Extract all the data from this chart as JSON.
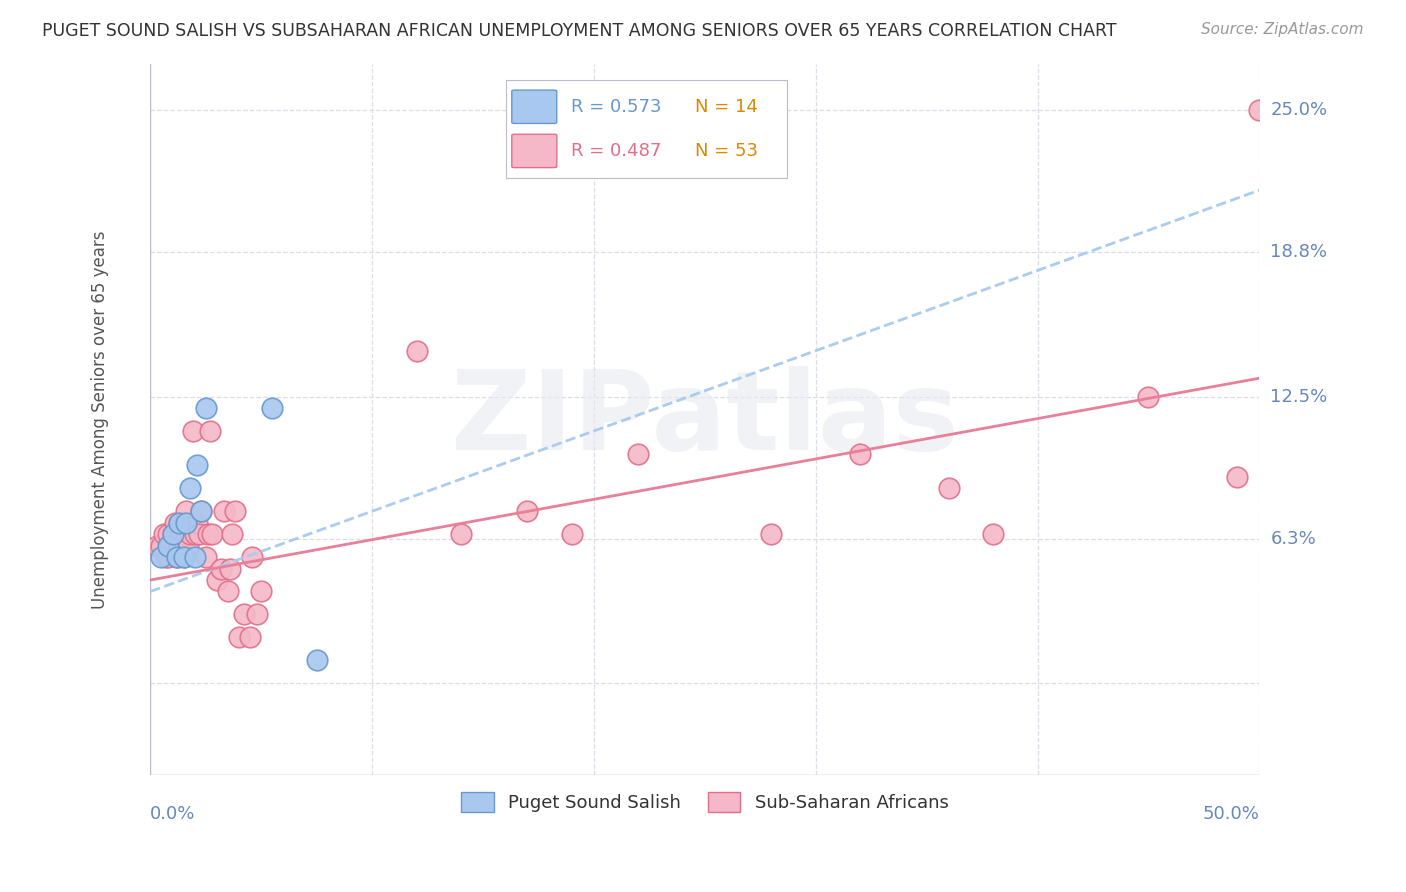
{
  "title": "PUGET SOUND SALISH VS SUBSAHARAN AFRICAN UNEMPLOYMENT AMONG SENIORS OVER 65 YEARS CORRELATION CHART",
  "source": "Source: ZipAtlas.com",
  "ylabel": "Unemployment Among Seniors over 65 years",
  "xlim": [
    0.0,
    0.5
  ],
  "ylim": [
    -0.04,
    0.27
  ],
  "ytick_positions": [
    0.0,
    0.063,
    0.125,
    0.188,
    0.25
  ],
  "ytick_labels": [
    "",
    "6.3%",
    "12.5%",
    "18.8%",
    "25.0%"
  ],
  "background_color": "#ffffff",
  "watermark": "ZIPatlas",
  "legend_r1": "R = 0.573",
  "legend_n1": "N = 14",
  "legend_r2": "R = 0.487",
  "legend_n2": "N = 53",
  "salish_color": "#a8c8f0",
  "salish_edge_color": "#6699cc",
  "african_color": "#f5b8c8",
  "african_edge_color": "#e0708a",
  "salish_line_color": "#aaccee",
  "african_line_color": "#e8809a",
  "grid_color": "#dddde8",
  "title_color": "#333333",
  "tick_label_color": "#6688bb",
  "legend_blue_color": "#6699cc",
  "legend_orange_color": "#dd8800",
  "legend_pink_color": "#e0708a",
  "salish_x": [
    0.005,
    0.008,
    0.01,
    0.012,
    0.013,
    0.015,
    0.016,
    0.018,
    0.02,
    0.021,
    0.023,
    0.025,
    0.055,
    0.075
  ],
  "salish_y": [
    0.055,
    0.06,
    0.065,
    0.055,
    0.07,
    0.055,
    0.07,
    0.085,
    0.055,
    0.095,
    0.075,
    0.12,
    0.12,
    0.01
  ],
  "african_x": [
    0.003,
    0.005,
    0.006,
    0.007,
    0.008,
    0.008,
    0.009,
    0.01,
    0.011,
    0.012,
    0.013,
    0.013,
    0.014,
    0.015,
    0.015,
    0.016,
    0.016,
    0.017,
    0.018,
    0.019,
    0.02,
    0.021,
    0.022,
    0.023,
    0.025,
    0.026,
    0.027,
    0.028,
    0.03,
    0.032,
    0.033,
    0.035,
    0.036,
    0.037,
    0.038,
    0.04,
    0.042,
    0.045,
    0.046,
    0.048,
    0.05,
    0.12,
    0.14,
    0.17,
    0.19,
    0.22,
    0.28,
    0.32,
    0.36,
    0.38,
    0.45,
    0.49,
    0.5
  ],
  "african_y": [
    0.06,
    0.06,
    0.065,
    0.055,
    0.055,
    0.065,
    0.06,
    0.065,
    0.07,
    0.055,
    0.06,
    0.07,
    0.065,
    0.055,
    0.07,
    0.065,
    0.075,
    0.06,
    0.065,
    0.11,
    0.065,
    0.07,
    0.065,
    0.075,
    0.055,
    0.065,
    0.11,
    0.065,
    0.045,
    0.05,
    0.075,
    0.04,
    0.05,
    0.065,
    0.075,
    0.02,
    0.03,
    0.02,
    0.055,
    0.03,
    0.04,
    0.145,
    0.065,
    0.075,
    0.065,
    0.1,
    0.065,
    0.1,
    0.085,
    0.065,
    0.125,
    0.09,
    0.25
  ],
  "salish_trend_x": [
    0.0,
    0.5
  ],
  "salish_trend_y": [
    0.04,
    0.215
  ],
  "african_trend_x": [
    0.0,
    0.5
  ],
  "african_trend_y": [
    0.045,
    0.133
  ]
}
